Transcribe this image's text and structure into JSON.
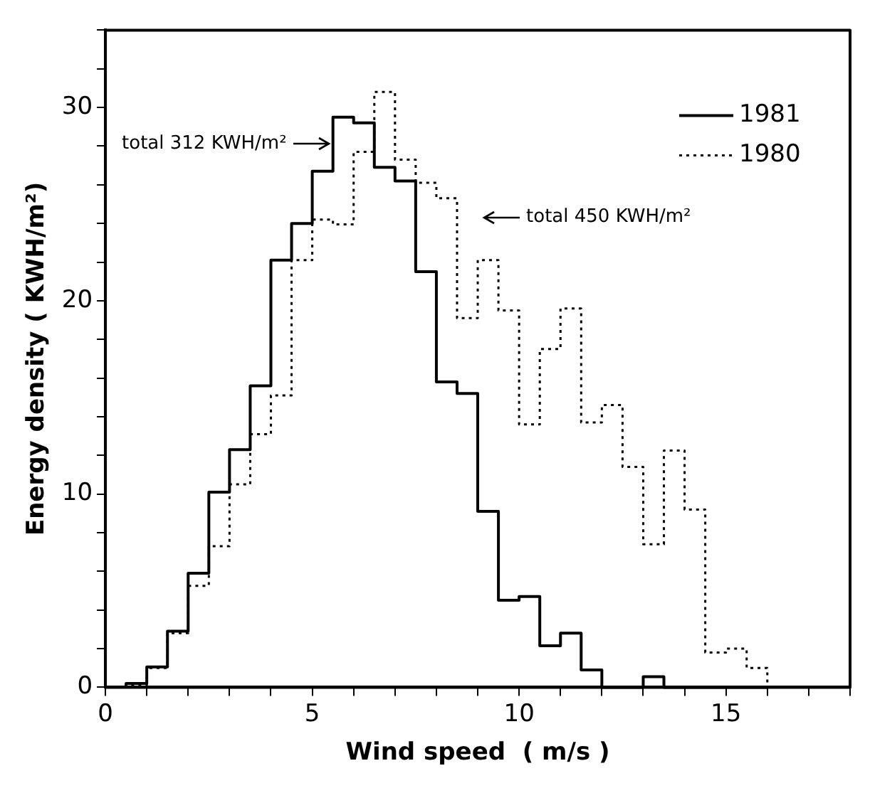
{
  "chart_data": {
    "type": "histogram",
    "xlabel": "Wind speed  ( m/s )",
    "ylabel": "Energy density ( KWH/m²)",
    "bins": [
      0.5,
      1,
      1.5,
      2,
      2.5,
      3,
      3.5,
      4,
      4.5,
      5,
      5.5,
      6,
      6.5,
      7,
      7.5,
      8,
      8.5,
      9,
      9.5,
      10,
      10.5,
      11,
      11.5,
      12,
      12.5,
      13,
      13.5,
      14,
      14.5,
      15,
      15.5,
      16
    ],
    "series": [
      {
        "name": "1981",
        "color": "#000000",
        "line_style": "solid",
        "values": [
          0.2,
          1.05,
          2.9,
          5.9,
          10.1,
          12.3,
          15.6,
          22.1,
          24.0,
          26.7,
          29.5,
          29.2,
          26.9,
          26.2,
          21.5,
          15.8,
          15.2,
          9.1,
          4.5,
          4.7,
          2.15,
          2.8,
          0.9,
          0,
          0,
          0.55,
          0,
          0,
          0,
          0,
          0
        ]
      },
      {
        "name": "1980",
        "color": "#000000",
        "line_style": "dotted",
        "values": [
          0.1,
          1.0,
          2.8,
          5.25,
          7.3,
          10.5,
          13.1,
          15.1,
          22.1,
          24.2,
          23.95,
          27.7,
          30.8,
          27.3,
          26.1,
          25.3,
          19.1,
          22.1,
          19.5,
          13.6,
          17.5,
          19.6,
          13.7,
          14.6,
          11.4,
          7.4,
          12.25,
          9.2,
          1.8,
          2.0,
          1.0
        ]
      }
    ],
    "annotations": [
      {
        "text": "total 312 KWH/m²",
        "x": 5.55,
        "y": 28.1
      },
      "total 450 KWH/m²"
    ],
    "xlim": [
      0,
      18
    ],
    "xticks": [
      0,
      {
        "value": 1,
        "label": null
      },
      {
        "value": 2,
        "label": null
      },
      {
        "value": 3,
        "label": null
      },
      {
        "value": 4,
        "label": null
      },
      5,
      {
        "value": 6,
        "label": null
      },
      {
        "value": 7,
        "label": null
      },
      {
        "value": 8,
        "label": null
      },
      {
        "value": 9,
        "label": null
      },
      10,
      {
        "value": 11,
        "label": null
      },
      {
        "value": 12,
        "label": null
      },
      {
        "value": 13,
        "label": null
      },
      {
        "value": 14,
        "label": null
      },
      15,
      {
        "value": 16,
        "label": null
      },
      {
        "value": 17,
        "label": null
      },
      {
        "value": 18,
        "label": null
      }
    ],
    "ylim": [
      0,
      34
    ],
    "yticks": [
      0,
      {
        "value": 2,
        "label": null
      },
      {
        "value": 4,
        "label": null
      },
      {
        "value": 6,
        "label": null
      },
      {
        "value": 8,
        "label": null
      },
      10,
      {
        "value": 12,
        "label": null
      },
      {
        "value": 14,
        "label": null
      },
      {
        "value": 16,
        "label": null
      },
      {
        "value": 18,
        "label": null
      },
      20,
      {
        "value": 22,
        "label": null
      },
      {
        "value": 24,
        "label": null
      },
      {
        "value": 26,
        "label": null
      },
      {
        "value": 28,
        "label": null
      },
      30,
      {
        "value": 32,
        "label": null
      },
      {
        "value": 34,
        "label": null
      }
    ],
    "grid": false,
    "legend": "top right"
  }
}
